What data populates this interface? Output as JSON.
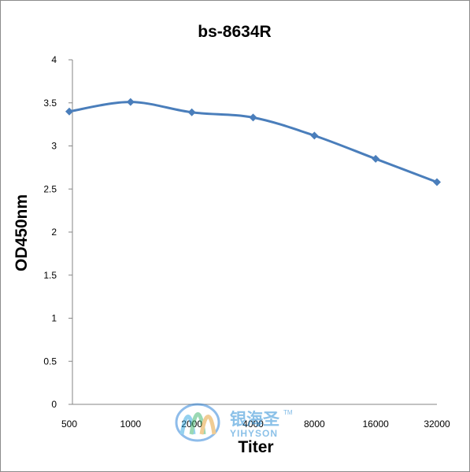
{
  "chart_data": {
    "type": "line",
    "title": "bs-8634R",
    "xlabel": "Titer",
    "ylabel": "OD450nm",
    "categories": [
      "500",
      "1000",
      "2000",
      "4000",
      "8000",
      "16000",
      "32000"
    ],
    "series": [
      {
        "values": [
          3.4,
          3.51,
          3.39,
          3.33,
          3.12,
          2.85,
          2.58
        ],
        "color": "#4a7ebb",
        "marker": "diamond"
      }
    ],
    "ylim": [
      0,
      4
    ],
    "yticks": [
      "0",
      "0.5",
      "1",
      "1.5",
      "2",
      "2.5",
      "3",
      "3.5",
      "4"
    ],
    "grid": false,
    "legend": "none"
  },
  "watermark": {
    "text_cn": "银海圣",
    "text_en": "YIHYSON",
    "trademark": "TM"
  }
}
